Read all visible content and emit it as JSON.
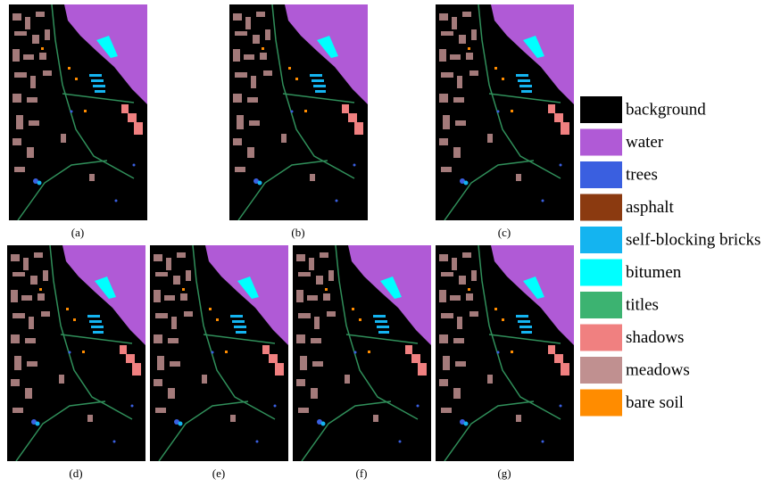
{
  "panels": [
    {
      "label": "(a)"
    },
    {
      "label": "(b)"
    },
    {
      "label": "(c)"
    },
    {
      "label": "(d)"
    },
    {
      "label": "(e)"
    },
    {
      "label": "(f)"
    },
    {
      "label": "(g)"
    }
  ],
  "legend": {
    "items": [
      {
        "label": "background",
        "color": "#000000"
      },
      {
        "label": "water",
        "color": "#b05ad6"
      },
      {
        "label": "trees",
        "color": "#3a5fe0"
      },
      {
        "label": "asphalt",
        "color": "#8b3a10"
      },
      {
        "label": "self-blocking bricks",
        "color": "#14b4f0"
      },
      {
        "label": "bitumen",
        "color": "#00ffff"
      },
      {
        "label": "titles",
        "color": "#3cb371"
      },
      {
        "label": "shadows",
        "color": "#f08080"
      },
      {
        "label": "meadows",
        "color": "#c09090"
      },
      {
        "label": "bare soil",
        "color": "#ff8c00"
      }
    ]
  }
}
